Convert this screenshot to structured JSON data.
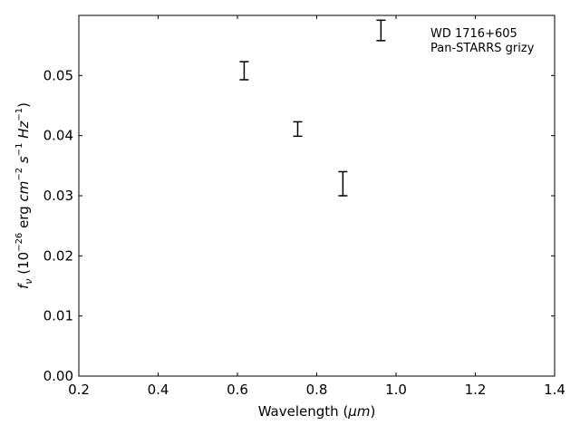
{
  "chart_data": {
    "type": "scatter",
    "xlabel_main": "Wavelength (",
    "xlabel_unit": "μm",
    "xlabel_close": ")",
    "ylabel_parts": {
      "f": "f",
      "nu": "ν",
      "open": " (10",
      "exp1": "−26",
      "erg": " erg ",
      "cm": "cm",
      "exp2": "−2",
      "s": " s",
      "exp3": "−1",
      "hz": " Hz",
      "exp4": "−1",
      "close": ")"
    },
    "xlim": [
      0.2,
      1.4
    ],
    "ylim": [
      0.0,
      0.06
    ],
    "xticks": [
      0.2,
      0.4,
      0.6,
      0.8,
      1.0,
      1.2,
      1.4
    ],
    "xtick_labels": [
      "0.2",
      "0.4",
      "0.6",
      "0.8",
      "1.0",
      "1.2",
      "1.4"
    ],
    "yticks": [
      0.0,
      0.01,
      0.02,
      0.03,
      0.04,
      0.05
    ],
    "ytick_labels": [
      "0.00",
      "0.01",
      "0.02",
      "0.03",
      "0.04",
      "0.05"
    ],
    "grid": false,
    "legend_placement": "top-right",
    "annotation_lines": [
      "WD 1716+605",
      "Pan-STARRS grizy"
    ],
    "series": [
      {
        "x": [
          0.617,
          0.752,
          0.866,
          0.962
        ],
        "y": [
          0.0508,
          0.0411,
          0.032,
          0.0575
        ],
        "yerr": [
          0.0015,
          0.0012,
          0.002,
          0.0017
        ],
        "color": "#000000"
      }
    ]
  }
}
